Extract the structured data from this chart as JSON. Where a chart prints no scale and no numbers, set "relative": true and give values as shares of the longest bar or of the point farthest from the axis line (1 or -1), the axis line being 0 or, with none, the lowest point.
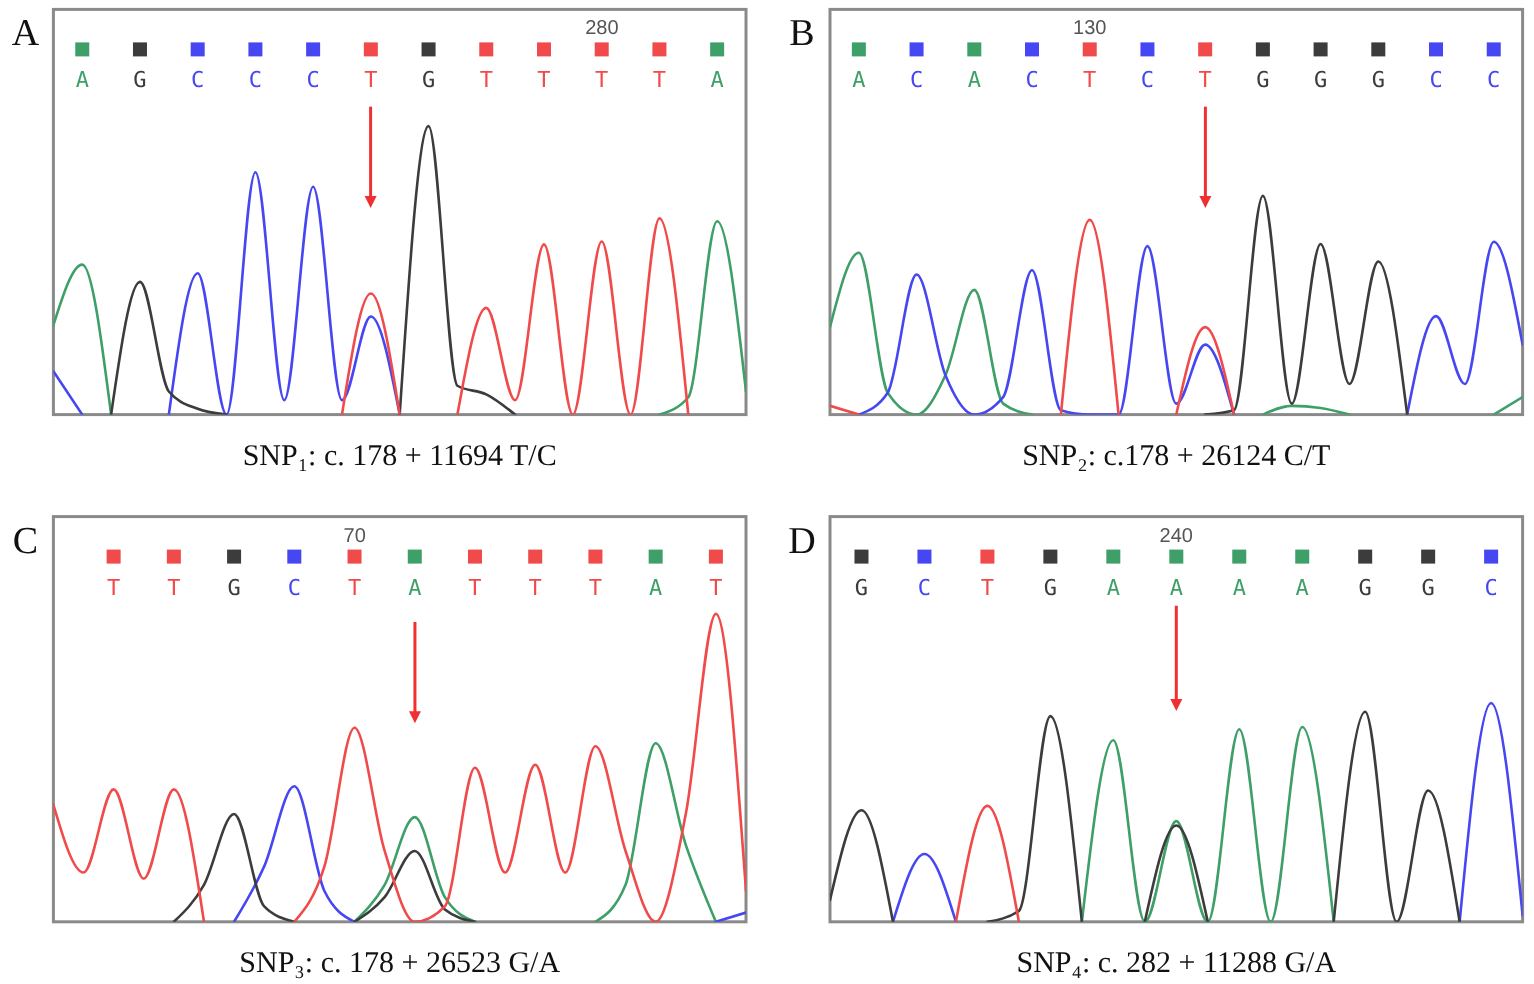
{
  "chart_data": [
    {
      "type": "line",
      "title": "A",
      "xlabel": "SNP₁: c. 178 + 11694 T/C",
      "relative": true,
      "categories": [
        null,
        "A",
        null,
        "G",
        null,
        "C",
        null,
        "C",
        null,
        "C",
        null,
        "T",
        null,
        "G",
        null,
        "T",
        null,
        "T",
        null,
        "T",
        null,
        "T",
        null,
        "A",
        null
      ],
      "annotations": [
        "280"
      ],
      "series": [
        {
          "color": "#3f9f68",
          "values": [
            0.31,
            0.52,
            0,
            null,
            null,
            null,
            null,
            null,
            null,
            null,
            null,
            null,
            null,
            null,
            null,
            null,
            null,
            null,
            null,
            null,
            null,
            0,
            0.06,
            0.67,
            0.08
          ]
        },
        {
          "color": "#4646f2",
          "values": [
            0.15,
            0,
            null,
            null,
            0,
            0.49,
            0,
            0.84,
            0.05,
            0.79,
            0.05,
            0.34,
            0,
            null,
            null,
            null,
            null,
            null,
            null,
            null,
            null,
            null,
            null,
            null,
            null
          ]
        },
        {
          "color": "#3c3c3c",
          "values": [
            null,
            null,
            0,
            0.46,
            0.08,
            0.02,
            0,
            null,
            null,
            null,
            null,
            null,
            0,
            1,
            0.1,
            0.07,
            0,
            null,
            null,
            null,
            null,
            null,
            null,
            null,
            null
          ]
        },
        {
          "color": "#f04a4a",
          "values": [
            null,
            null,
            null,
            null,
            null,
            null,
            null,
            null,
            null,
            null,
            0,
            0.42,
            0,
            null,
            0,
            0.37,
            0.05,
            0.59,
            0,
            0.6,
            0,
            0.68,
            0,
            null,
            null
          ]
        }
      ]
    },
    {
      "type": "line",
      "title": "B",
      "xlabel": "SNP₂: c.178 + 26124 C/T",
      "relative": true,
      "categories": [
        null,
        "A",
        null,
        "C",
        null,
        "A",
        null,
        "C",
        null,
        "T",
        null,
        "C",
        null,
        "T",
        null,
        "G",
        null,
        "G",
        null,
        "G",
        null,
        "C",
        null,
        "C",
        null
      ],
      "annotations": [
        "130"
      ],
      "series": [
        {
          "color": "#3f9f68",
          "values": [
            0.4,
            0.74,
            0.1,
            0,
            0.18,
            0.57,
            0.05,
            0,
            null,
            null,
            null,
            null,
            null,
            null,
            null,
            0,
            0.04,
            0.03,
            0,
            null,
            null,
            null,
            null,
            0,
            0.08
          ]
        },
        {
          "color": "#4646f2",
          "values": [
            null,
            0,
            0.1,
            0.64,
            0.18,
            0,
            0.08,
            0.66,
            0.02,
            0,
            0,
            0.77,
            0.05,
            0.32,
            0,
            null,
            null,
            null,
            null,
            null,
            0,
            0.45,
            0.14,
            0.79,
            0.32
          ]
        },
        {
          "color": "#3c3c3c",
          "values": [
            null,
            null,
            null,
            null,
            null,
            null,
            null,
            null,
            null,
            null,
            null,
            null,
            null,
            0,
            0.02,
            1,
            0.05,
            0.78,
            0.14,
            0.7,
            0,
            null,
            null,
            null,
            null
          ]
        },
        {
          "color": "#f04a4a",
          "values": [
            0.04,
            0,
            null,
            null,
            null,
            null,
            null,
            null,
            0,
            0.89,
            0,
            null,
            0,
            0.4,
            0,
            null,
            null,
            null,
            null,
            null,
            null,
            null,
            null,
            null,
            null
          ]
        }
      ]
    },
    {
      "type": "line",
      "title": "C",
      "xlabel": "SNP₃: c. 178 + 26523 G/A",
      "relative": true,
      "categories": [
        null,
        null,
        "T",
        null,
        "T",
        null,
        "G",
        null,
        "C",
        null,
        "T",
        null,
        "A",
        null,
        "T",
        null,
        "T",
        null,
        "T",
        null,
        "A",
        null,
        "T",
        null
      ],
      "annotations": [
        "70"
      ],
      "series": [
        {
          "color": "#3f9f68",
          "values": [
            null,
            null,
            null,
            null,
            null,
            null,
            null,
            null,
            null,
            null,
            0,
            0.12,
            0.34,
            0.08,
            0,
            null,
            null,
            null,
            0,
            0.12,
            0.58,
            0.25,
            0,
            null
          ]
        },
        {
          "color": "#4646f2",
          "values": [
            null,
            null,
            null,
            null,
            null,
            null,
            0,
            0.18,
            0.44,
            0.1,
            0,
            null,
            null,
            null,
            null,
            null,
            null,
            null,
            null,
            null,
            null,
            null,
            0,
            0.03
          ]
        },
        {
          "color": "#3c3c3c",
          "values": [
            null,
            null,
            null,
            null,
            0,
            0.12,
            0.35,
            0.05,
            0,
            null,
            0,
            0.08,
            0.23,
            0.04,
            0,
            null,
            null,
            null,
            null,
            null,
            null,
            null,
            null,
            null
          ]
        },
        {
          "color": "#f04a4a",
          "values": [
            0.38,
            0.16,
            0.43,
            0.14,
            0.43,
            0,
            null,
            null,
            0,
            0.18,
            0.63,
            0.23,
            0,
            0.05,
            0.5,
            0.16,
            0.51,
            0.16,
            0.57,
            0.23,
            0,
            0.35,
            1,
            0.1
          ]
        }
      ]
    },
    {
      "type": "line",
      "title": "D",
      "xlabel": "SNP₄: c. 282 + 11288 G/A",
      "relative": true,
      "categories": [
        null,
        "G",
        null,
        "C",
        null,
        "T",
        null,
        "G",
        null,
        "A",
        null,
        "A",
        null,
        "A",
        null,
        "A",
        null,
        "G",
        null,
        "G",
        null,
        "C",
        null
      ],
      "annotations": [
        "240"
      ],
      "series": [
        {
          "color": "#3f9f68",
          "values": [
            null,
            null,
            null,
            null,
            null,
            null,
            null,
            null,
            0,
            0.83,
            0,
            0.46,
            0,
            0.88,
            0,
            0.89,
            0,
            null,
            null,
            null,
            null,
            null,
            null
          ]
        },
        {
          "color": "#4646f2",
          "values": [
            null,
            null,
            0,
            0.31,
            0,
            null,
            null,
            null,
            null,
            null,
            null,
            null,
            null,
            null,
            null,
            null,
            null,
            null,
            null,
            null,
            0,
            1,
            0.03
          ]
        },
        {
          "color": "#3c3c3c",
          "values": [
            0.1,
            0.51,
            0,
            null,
            null,
            0,
            0.05,
            0.94,
            0,
            null,
            0,
            0.44,
            0,
            null,
            null,
            null,
            0,
            0.96,
            0,
            0.6,
            0,
            null,
            null
          ]
        },
        {
          "color": "#f04a4a",
          "values": [
            null,
            null,
            null,
            null,
            0,
            0.53,
            0,
            null,
            null,
            null,
            null,
            null,
            null,
            null,
            null,
            null,
            null,
            null,
            null,
            null,
            null,
            null,
            null
          ]
        }
      ]
    }
  ]
}
